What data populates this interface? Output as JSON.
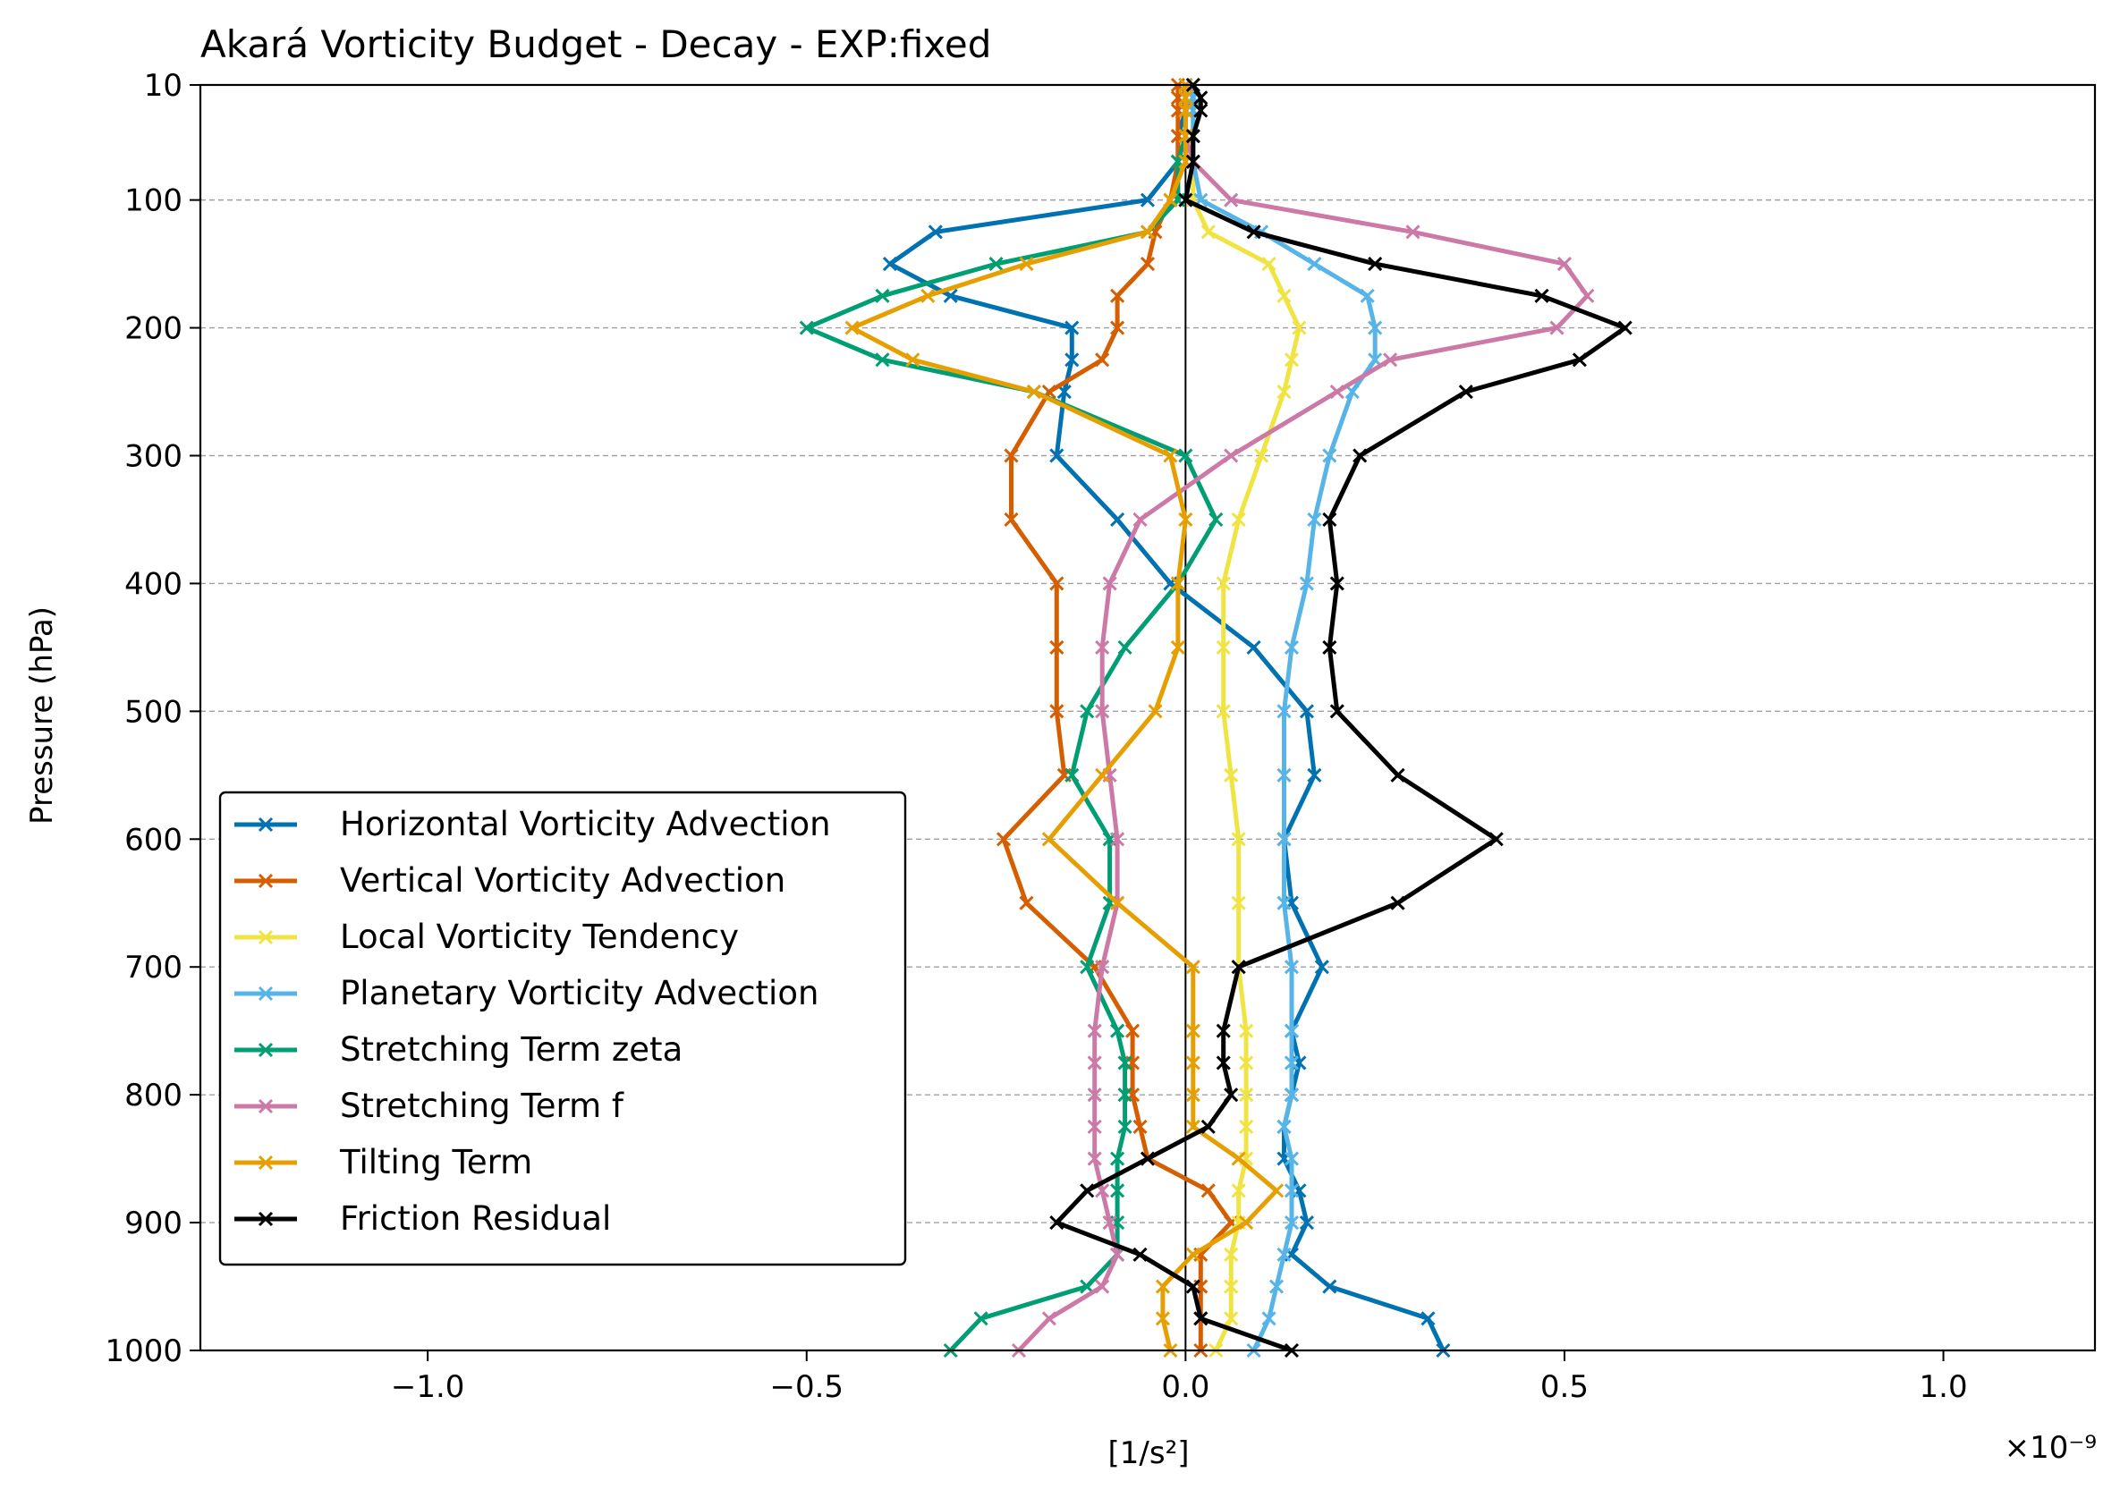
{
  "chart_data": {
    "type": "line",
    "title": "Akará Vorticity Budget - Decay - EXP:fixed",
    "xlabel": "[1/s²]",
    "ylabel": "Pressure (hPa)",
    "x_scale_label": "×10⁻⁹",
    "xlim": [
      -1.3,
      1.2
    ],
    "ylim": [
      1000,
      10
    ],
    "y_inverted": true,
    "x_ticks": [
      -1.0,
      -0.5,
      0.0,
      0.5,
      1.0
    ],
    "x_tick_labels": [
      "−1.0",
      "−0.5",
      "0.0",
      "0.5",
      "1.0"
    ],
    "y_ticks": [
      10,
      100,
      200,
      300,
      400,
      500,
      600,
      700,
      800,
      900,
      1000
    ],
    "y_tick_labels": [
      "10",
      "100",
      "200",
      "300",
      "400",
      "500",
      "600",
      "700",
      "800",
      "900",
      "1000"
    ],
    "grid": "horizontal dashed",
    "legend_position": "lower-left",
    "levels": [
      1000,
      975,
      950,
      925,
      900,
      875,
      850,
      825,
      800,
      775,
      750,
      700,
      650,
      600,
      550,
      500,
      450,
      400,
      350,
      300,
      250,
      225,
      200,
      175,
      150,
      125,
      100,
      70,
      50,
      30,
      20,
      10
    ],
    "series": [
      {
        "name": "Horizontal Vorticity Advection",
        "color": "#0072B2",
        "values": [
          0.34,
          0.32,
          0.19,
          0.14,
          0.16,
          0.15,
          0.13,
          0.13,
          0.14,
          0.15,
          0.14,
          0.18,
          0.14,
          0.13,
          0.17,
          0.16,
          0.09,
          -0.02,
          -0.09,
          -0.17,
          -0.16,
          -0.15,
          -0.15,
          -0.31,
          -0.39,
          -0.33,
          -0.05,
          -0.01,
          -0.01,
          0.0,
          0.01,
          0.01
        ]
      },
      {
        "name": "Vertical Vorticity Advection",
        "color": "#D55E00",
        "values": [
          0.02,
          0.02,
          0.02,
          0.02,
          0.06,
          0.03,
          -0.05,
          -0.06,
          -0.07,
          -0.07,
          -0.07,
          -0.12,
          -0.21,
          -0.24,
          -0.16,
          -0.17,
          -0.17,
          -0.17,
          -0.23,
          -0.23,
          -0.18,
          -0.11,
          -0.09,
          -0.09,
          -0.05,
          -0.04,
          -0.02,
          -0.01,
          -0.01,
          -0.01,
          -0.01,
          -0.01
        ]
      },
      {
        "name": "Local Vorticity Tendency",
        "color": "#F0E442",
        "values": [
          0.04,
          0.06,
          0.06,
          0.06,
          0.07,
          0.07,
          0.08,
          0.08,
          0.08,
          0.08,
          0.08,
          0.07,
          0.07,
          0.07,
          0.06,
          0.05,
          0.05,
          0.05,
          0.07,
          0.1,
          0.13,
          0.14,
          0.15,
          0.13,
          0.11,
          0.03,
          0.01,
          0.01,
          0.01,
          0.01,
          0.01,
          0.01
        ]
      },
      {
        "name": "Planetary Vorticity Advection",
        "color": "#56B4E9",
        "values": [
          0.09,
          0.11,
          0.12,
          0.13,
          0.14,
          0.14,
          0.14,
          0.13,
          0.14,
          0.14,
          0.14,
          0.14,
          0.13,
          0.13,
          0.13,
          0.13,
          0.14,
          0.16,
          0.17,
          0.19,
          0.22,
          0.25,
          0.25,
          0.24,
          0.17,
          0.1,
          0.02,
          0.01,
          0.01,
          0.01,
          0.01,
          0.01
        ]
      },
      {
        "name": "Stretching Term zeta",
        "color": "#009E73",
        "values": [
          -0.31,
          -0.27,
          -0.13,
          -0.09,
          -0.09,
          -0.09,
          -0.09,
          -0.08,
          -0.08,
          -0.08,
          -0.09,
          -0.13,
          -0.1,
          -0.1,
          -0.15,
          -0.13,
          -0.08,
          -0.01,
          0.04,
          0.0,
          -0.2,
          -0.4,
          -0.5,
          -0.4,
          -0.25,
          -0.05,
          -0.01,
          -0.01,
          0.0,
          0.0,
          0.0,
          0.0
        ]
      },
      {
        "name": "Stretching Term f",
        "color": "#CC79A7",
        "values": [
          -0.22,
          -0.18,
          -0.11,
          -0.09,
          -0.1,
          -0.11,
          -0.12,
          -0.12,
          -0.12,
          -0.12,
          -0.12,
          -0.11,
          -0.09,
          -0.09,
          -0.1,
          -0.11,
          -0.11,
          -0.1,
          -0.06,
          0.06,
          0.2,
          0.27,
          0.49,
          0.53,
          0.5,
          0.3,
          0.06,
          0.01,
          0.0,
          0.0,
          0.0,
          0.0
        ]
      },
      {
        "name": "Tilting Term",
        "color": "#E69F00",
        "values": [
          -0.02,
          -0.03,
          -0.03,
          0.01,
          0.08,
          0.12,
          0.07,
          0.01,
          0.01,
          0.01,
          0.01,
          0.01,
          -0.09,
          -0.18,
          -0.11,
          -0.04,
          -0.01,
          -0.01,
          0.0,
          -0.02,
          -0.2,
          -0.36,
          -0.44,
          -0.34,
          -0.21,
          -0.05,
          -0.02,
          0.0,
          0.0,
          0.0,
          0.0,
          0.0
        ]
      },
      {
        "name": "Friction Residual",
        "color": "#000000",
        "values": [
          0.14,
          0.02,
          0.01,
          -0.06,
          -0.17,
          -0.13,
          -0.05,
          0.03,
          0.06,
          0.05,
          0.05,
          0.07,
          0.28,
          0.41,
          0.28,
          0.2,
          0.19,
          0.2,
          0.19,
          0.23,
          0.37,
          0.52,
          0.58,
          0.47,
          0.25,
          0.09,
          0.0,
          0.01,
          0.01,
          0.02,
          0.02,
          0.01
        ]
      }
    ]
  }
}
